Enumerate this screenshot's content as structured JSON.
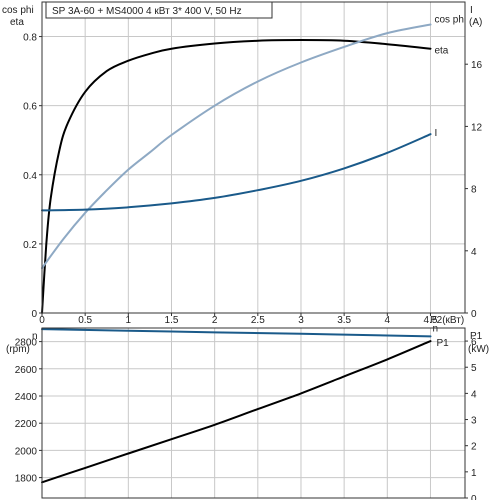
{
  "title": "SP 3A-60 + MS4000    4 кВт   3* 400 V, 50 Hz",
  "colors": {
    "eta": "#000000",
    "cos_phi": "#8ea9c4",
    "current": "#1a5a8a",
    "speed": "#1a5a8a",
    "power": "#000000"
  },
  "chart_data": [
    {
      "type": "line",
      "xlabel": "P2(кВт)",
      "x_ticks": [
        "0",
        "0.5",
        "1",
        "1.5",
        "2",
        "2.5",
        "3",
        "3.5",
        "4",
        "4.5"
      ],
      "xlim": [
        0,
        4.9
      ],
      "left_axis": {
        "label_top": "cos phi",
        "label_bottom": "eta",
        "ylim": [
          0,
          0.9
        ],
        "ticks": [
          "0",
          "0.2",
          "0.4",
          "0.6",
          "0.8"
        ]
      },
      "right_axis": {
        "label_top": "I",
        "label_bottom": "(A)",
        "ylim": [
          0,
          20
        ],
        "ticks": [
          "0",
          "4",
          "8",
          "12",
          "16"
        ]
      },
      "grid": true,
      "series": [
        {
          "name": "eta",
          "axis": "left",
          "x": [
            0,
            0.05,
            0.1,
            0.2,
            0.3,
            0.5,
            0.75,
            1.0,
            1.25,
            1.5,
            2.0,
            2.5,
            3.0,
            3.5,
            4.0,
            4.5
          ],
          "y": [
            0,
            0.2,
            0.33,
            0.47,
            0.55,
            0.64,
            0.7,
            0.73,
            0.75,
            0.765,
            0.78,
            0.788,
            0.79,
            0.788,
            0.778,
            0.765
          ]
        },
        {
          "name": "cos phi",
          "axis": "left",
          "x": [
            0,
            0.25,
            0.5,
            0.75,
            1.0,
            1.25,
            1.5,
            2.0,
            2.5,
            3.0,
            3.5,
            4.0,
            4.5
          ],
          "y": [
            0.13,
            0.215,
            0.29,
            0.355,
            0.415,
            0.465,
            0.515,
            0.6,
            0.67,
            0.725,
            0.77,
            0.81,
            0.835
          ]
        },
        {
          "name": "I",
          "axis": "right",
          "x": [
            0,
            0.5,
            1.0,
            1.5,
            2.0,
            2.5,
            3.0,
            3.5,
            4.0,
            4.5
          ],
          "y": [
            6.6,
            6.65,
            6.8,
            7.05,
            7.4,
            7.9,
            8.5,
            9.3,
            10.3,
            11.5
          ]
        }
      ]
    },
    {
      "type": "line",
      "left_axis": {
        "label_top": "n",
        "label_bottom": "(rpm)",
        "ylim": [
          1650,
          2900
        ],
        "ticks": [
          "1800",
          "2000",
          "2200",
          "2400",
          "2600",
          "2800"
        ]
      },
      "right_axis": {
        "label_top": "P1",
        "label_bottom": "(kW)",
        "ylim": [
          0,
          6.5
        ],
        "ticks": [
          "0",
          "1",
          "2",
          "3",
          "4",
          "5",
          "6"
        ]
      },
      "xlim": [
        0,
        4.9
      ],
      "grid": true,
      "series": [
        {
          "name": "n",
          "axis": "left",
          "x": [
            0,
            1.0,
            2.0,
            3.0,
            4.0,
            4.5
          ],
          "y": [
            2892,
            2880,
            2868,
            2857,
            2845,
            2838
          ]
        },
        {
          "name": "P1",
          "axis": "right",
          "x": [
            0,
            0.5,
            1.0,
            1.5,
            2.0,
            2.5,
            3.0,
            3.5,
            4.0,
            4.5
          ],
          "y": [
            0.6,
            1.15,
            1.7,
            2.25,
            2.8,
            3.4,
            4.0,
            4.65,
            5.3,
            6.0
          ]
        }
      ]
    }
  ]
}
